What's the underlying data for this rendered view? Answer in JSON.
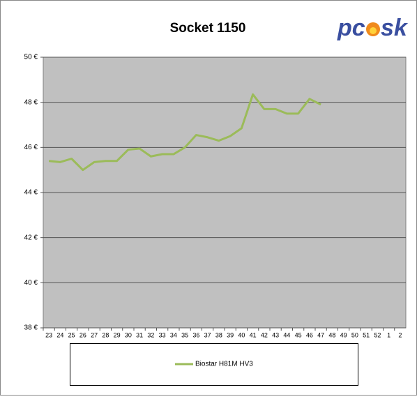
{
  "chart_data": {
    "type": "line",
    "title": "Socket 1150",
    "logo": [
      "pc",
      "sk"
    ],
    "categories": [
      "23",
      "24",
      "25",
      "26",
      "27",
      "28",
      "29",
      "30",
      "31",
      "32",
      "33",
      "34",
      "35",
      "36",
      "37",
      "38",
      "39",
      "40",
      "41",
      "42",
      "43",
      "44",
      "45",
      "46",
      "47",
      "48",
      "49",
      "50",
      "51",
      "52",
      "1",
      "2"
    ],
    "series": [
      {
        "name": "Biostar H81M HV3",
        "color": "#9bbb59",
        "values": [
          45.4,
          45.35,
          45.5,
          45.0,
          45.35,
          45.4,
          45.4,
          45.9,
          45.95,
          45.6,
          45.7,
          45.7,
          46.0,
          46.55,
          46.45,
          46.3,
          46.5,
          46.85,
          48.35,
          47.7,
          47.7,
          47.5,
          47.5,
          48.15,
          47.9,
          null,
          null,
          null,
          null,
          null,
          null,
          null
        ]
      }
    ],
    "ylim": [
      38,
      50
    ],
    "yticks": [
      {
        "value": 38,
        "label": "38 €"
      },
      {
        "value": 40,
        "label": "40 €"
      },
      {
        "value": 42,
        "label": "42 €"
      },
      {
        "value": 44,
        "label": "44 €"
      },
      {
        "value": 46,
        "label": "46 €"
      },
      {
        "value": 48,
        "label": "48 €"
      },
      {
        "value": 50,
        "label": "50 €"
      }
    ],
    "grid": true
  }
}
